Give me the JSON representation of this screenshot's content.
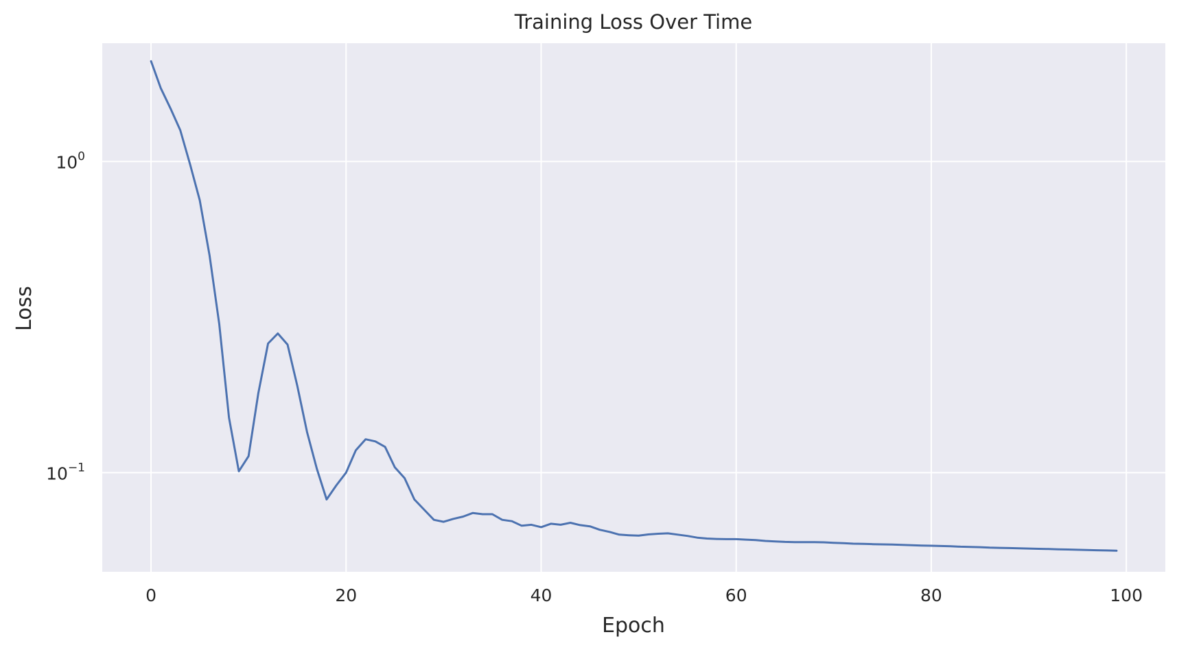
{
  "chart_data": {
    "type": "line",
    "title": "Training Loss Over Time",
    "xlabel": "Epoch",
    "ylabel": "Loss",
    "yscale": "log",
    "xlim": [
      -5,
      104
    ],
    "ylim": [
      0.048,
      2.4
    ],
    "x_ticks": [
      {
        "value": 0,
        "label": "0"
      },
      {
        "value": 20,
        "label": "20"
      },
      {
        "value": 40,
        "label": "40"
      },
      {
        "value": 60,
        "label": "60"
      },
      {
        "value": 80,
        "label": "80"
      },
      {
        "value": 100,
        "label": "100"
      }
    ],
    "y_ticks": [
      {
        "value": 1,
        "base": "10",
        "exponent": "0"
      },
      {
        "value": 0.1,
        "base": "10",
        "exponent": "−1"
      }
    ],
    "grid": true,
    "legend": false,
    "colors": {
      "line": "#4c72b0",
      "plot_background": "#eaeaf2",
      "grid": "#ffffff"
    },
    "series": [
      {
        "x": [
          0,
          1,
          2,
          3,
          4,
          5,
          6,
          7,
          8,
          9,
          10,
          11,
          12,
          13,
          14,
          15,
          16,
          17,
          18,
          19,
          20,
          21,
          22,
          23,
          24,
          25,
          26,
          27,
          28,
          29,
          30,
          31,
          32,
          33,
          34,
          35,
          36,
          37,
          38,
          39,
          40,
          41,
          42,
          43,
          44,
          45,
          46,
          47,
          48,
          49,
          50,
          51,
          52,
          53,
          54,
          55,
          56,
          57,
          58,
          59,
          60,
          61,
          62,
          63,
          64,
          65,
          66,
          67,
          68,
          69,
          70,
          71,
          72,
          73,
          74,
          75,
          76,
          77,
          78,
          79,
          80,
          81,
          82,
          83,
          84,
          85,
          86,
          87,
          88,
          89,
          90,
          91,
          92,
          93,
          94,
          95,
          96,
          97,
          98,
          99
        ],
        "y": [
          2.1,
          1.72,
          1.48,
          1.26,
          0.98,
          0.75,
          0.5,
          0.3,
          0.15,
          0.101,
          0.113,
          0.18,
          0.26,
          0.28,
          0.258,
          0.19,
          0.135,
          0.103,
          0.082,
          0.091,
          0.1,
          0.118,
          0.128,
          0.126,
          0.121,
          0.104,
          0.096,
          0.082,
          0.076,
          0.0705,
          0.0695,
          0.071,
          0.0722,
          0.0742,
          0.0735,
          0.0735,
          0.0705,
          0.0698,
          0.0675,
          0.068,
          0.0668,
          0.0685,
          0.068,
          0.069,
          0.0678,
          0.0672,
          0.0655,
          0.0645,
          0.0632,
          0.0629,
          0.0627,
          0.0633,
          0.0636,
          0.0638,
          0.0632,
          0.0626,
          0.0618,
          0.0614,
          0.0612,
          0.0611,
          0.0611,
          0.0609,
          0.0607,
          0.0603,
          0.0601,
          0.0599,
          0.0598,
          0.0598,
          0.0598,
          0.0597,
          0.0595,
          0.0593,
          0.0591,
          0.059,
          0.0589,
          0.0588,
          0.0587,
          0.0586,
          0.0584,
          0.0583,
          0.0582,
          0.0581,
          0.058,
          0.0578,
          0.0577,
          0.0576,
          0.0574,
          0.0573,
          0.0572,
          0.0571,
          0.057,
          0.0569,
          0.0568,
          0.0567,
          0.0566,
          0.0565,
          0.0564,
          0.0563,
          0.0562,
          0.0561
        ]
      }
    ]
  }
}
